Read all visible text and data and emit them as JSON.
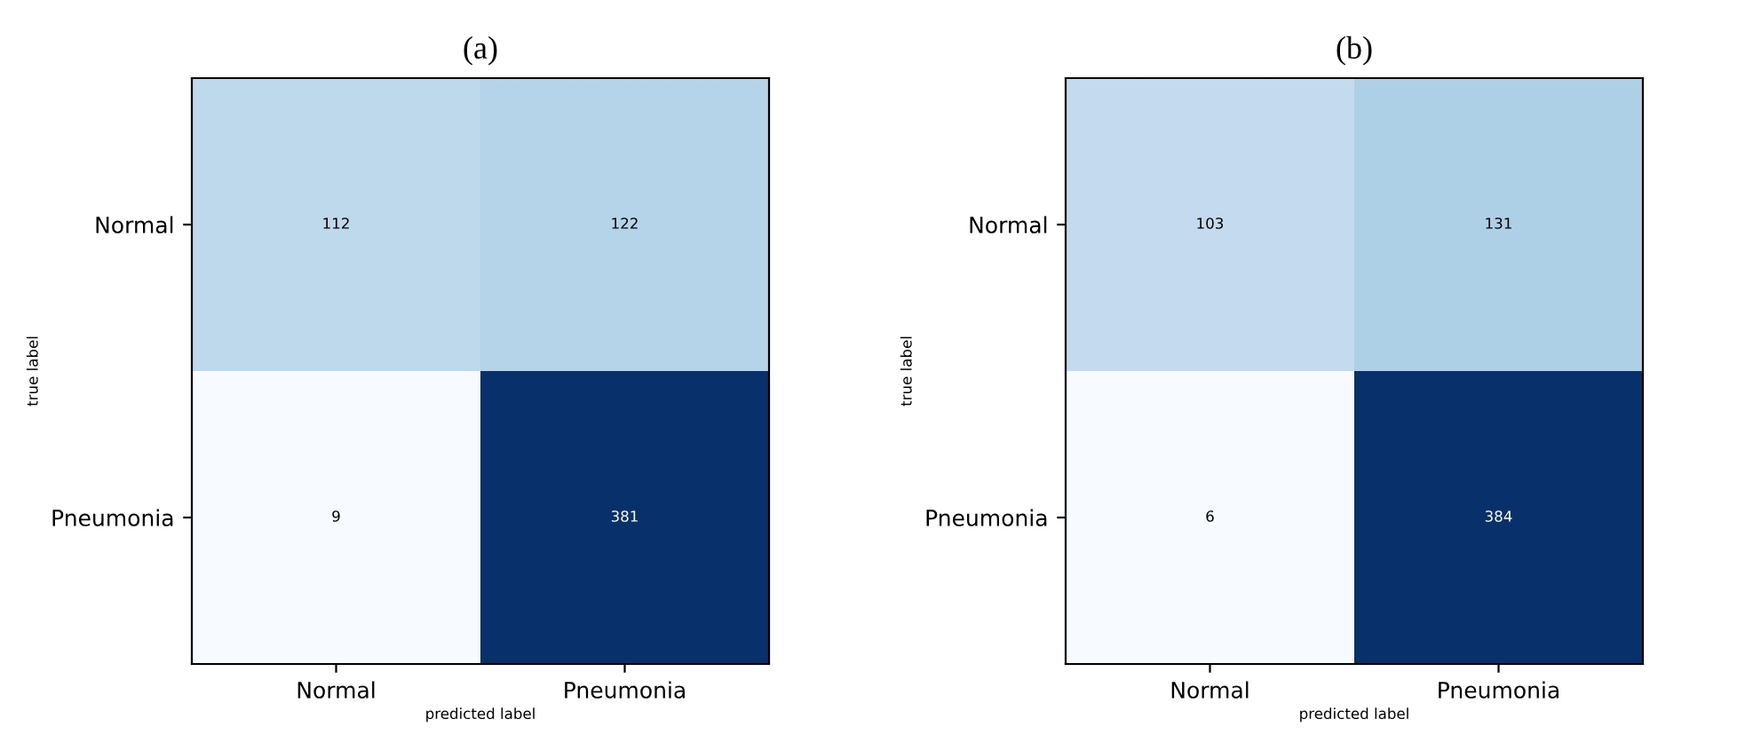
{
  "chart_data": [
    {
      "type": "heatmap",
      "title": "(a)",
      "xlabel": "predicted label",
      "ylabel": "true label",
      "categories": [
        "Normal",
        "Pneumonia"
      ],
      "y_categories": [
        "Normal",
        "Pneumonia"
      ],
      "cells": [
        [
          112,
          122
        ],
        [
          9,
          381
        ]
      ],
      "data_labels": true
    },
    {
      "type": "heatmap",
      "title": "(b)",
      "xlabel": "predicted label",
      "ylabel": "true label",
      "categories": [
        "Normal",
        "Pneumonia"
      ],
      "y_categories": [
        "Normal",
        "Pneumonia"
      ],
      "cells": [
        [
          103,
          131
        ],
        [
          6,
          384
        ]
      ],
      "data_labels": true
    }
  ]
}
